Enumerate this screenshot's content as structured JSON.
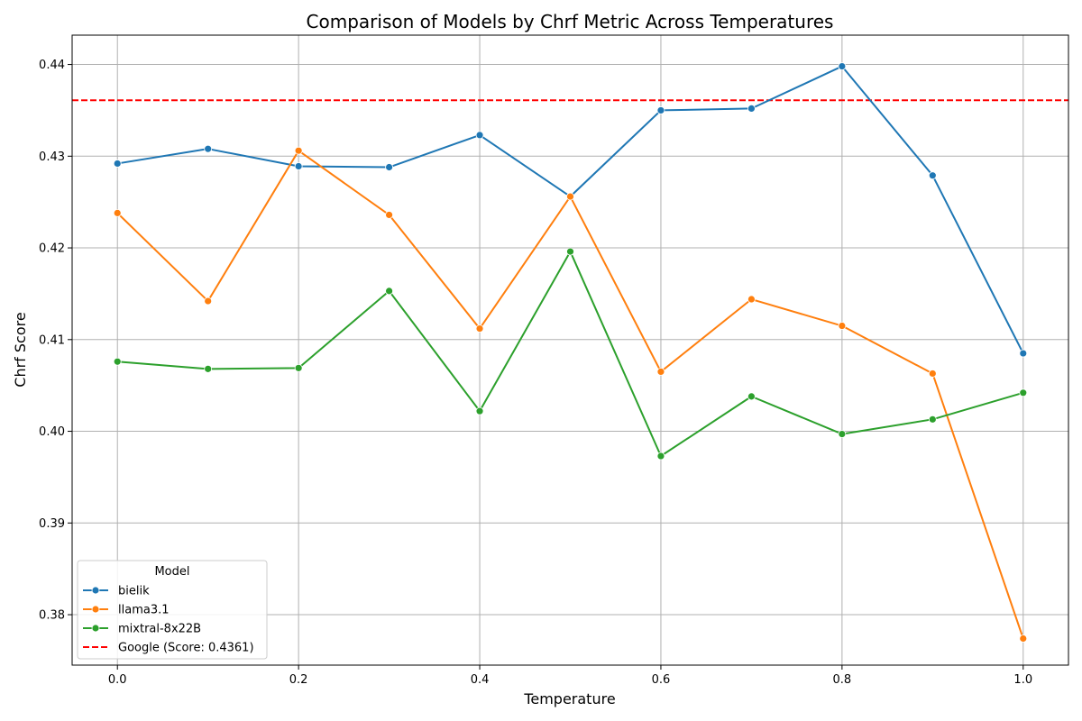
{
  "chart_data": {
    "type": "line",
    "title": "Comparison of Models by Chrf Metric Across Temperatures",
    "xlabel": "Temperature",
    "ylabel": "Chrf Score",
    "x": [
      0.0,
      0.1,
      0.2,
      0.3,
      0.4,
      0.5,
      0.6,
      0.7,
      0.8,
      0.9,
      1.0
    ],
    "xlim": [
      -0.05,
      1.05
    ],
    "ylim": [
      0.3745,
      0.4432
    ],
    "xticks": [
      "0.0",
      "0.2",
      "0.4",
      "0.6",
      "0.8",
      "1.0"
    ],
    "yticks": [
      "0.38",
      "0.39",
      "0.40",
      "0.41",
      "0.42",
      "0.43",
      "0.44"
    ],
    "grid": true,
    "legend": {
      "title": "Model",
      "placement": "bottom-left"
    },
    "series": [
      {
        "name": "bielik",
        "color": "#1f77b4",
        "values": [
          0.4292,
          0.4308,
          0.4289,
          0.4288,
          0.4323,
          0.4256,
          0.435,
          0.4352,
          0.4398,
          0.4279,
          0.4085
        ]
      },
      {
        "name": "llama3.1",
        "color": "#ff7f0e",
        "values": [
          0.4238,
          0.4142,
          0.4306,
          0.4236,
          0.4112,
          0.4256,
          0.4065,
          0.4144,
          0.4115,
          0.4063,
          0.3774
        ]
      },
      {
        "name": "mixtral-8x22B",
        "color": "#2ca02c",
        "values": [
          0.4076,
          0.4068,
          0.4069,
          0.4153,
          0.4022,
          0.4196,
          0.3973,
          0.4038,
          0.3997,
          0.4013,
          0.4042
        ]
      }
    ],
    "reference_line": {
      "name": "Google (Score: 0.4361)",
      "value": 0.4361,
      "color": "#ff0000",
      "style": "dashed"
    }
  }
}
